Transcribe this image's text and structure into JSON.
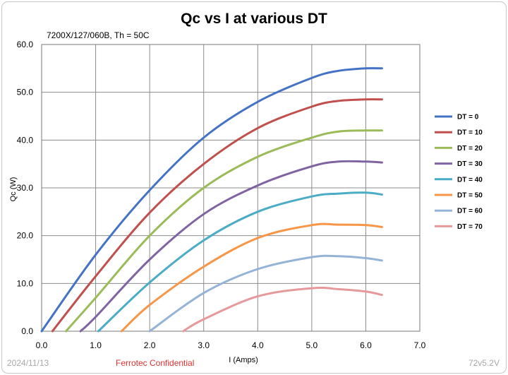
{
  "chart_data": {
    "type": "line",
    "title": "Qc vs I at various DT",
    "subtitle": "7200X/127/060B, Th = 50C",
    "xlabel": "I (Amps)",
    "ylabel": "Qc (W)",
    "xlim": [
      0,
      7
    ],
    "ylim": [
      0,
      60
    ],
    "xticks": [
      "0.0",
      "1.0",
      "2.0",
      "3.0",
      "4.0",
      "5.0",
      "6.0",
      "7.0"
    ],
    "yticks": [
      "0.0",
      "10.0",
      "20.0",
      "30.0",
      "40.0",
      "50.0",
      "60.0"
    ],
    "grid": true,
    "legend_position": "right",
    "series": [
      {
        "name": "DT = 0",
        "color": "#4472c4",
        "x": [
          0,
          1,
          2,
          3,
          4,
          5,
          5.5,
          6,
          6.3
        ],
        "y": [
          0,
          16,
          29.5,
          40.5,
          48,
          53,
          54.5,
          55,
          55
        ]
      },
      {
        "name": "DT = 10",
        "color": "#c0504d",
        "x": [
          0.2,
          1,
          2,
          3,
          4,
          5,
          5.5,
          6,
          6.3
        ],
        "y": [
          0,
          11.5,
          24.8,
          35,
          42.5,
          47,
          48.2,
          48.5,
          48.5
        ]
      },
      {
        "name": "DT = 20",
        "color": "#9bbb59",
        "x": [
          0.45,
          1,
          2,
          3,
          4,
          5,
          5.5,
          6,
          6.3
        ],
        "y": [
          0,
          7,
          20,
          30,
          36.5,
          40.5,
          41.8,
          42,
          42
        ]
      },
      {
        "name": "DT = 30",
        "color": "#8064a2",
        "x": [
          0.72,
          1,
          2,
          3,
          4,
          5,
          5.5,
          6,
          6.3
        ],
        "y": [
          0,
          3,
          15,
          24.5,
          30.5,
          34.5,
          35.5,
          35.5,
          35.3
        ]
      },
      {
        "name": "DT = 40",
        "color": "#4bacc6",
        "x": [
          1.05,
          2,
          3,
          4,
          5,
          5.5,
          6,
          6.3
        ],
        "y": [
          0,
          10.2,
          19,
          25,
          28.2,
          28.8,
          29,
          28.6
        ]
      },
      {
        "name": "DT = 50",
        "color": "#f79646",
        "x": [
          1.48,
          2,
          3,
          4,
          5,
          5.5,
          6,
          6.3
        ],
        "y": [
          0,
          5.5,
          13.5,
          19.5,
          22.2,
          22.3,
          22.2,
          21.8
        ]
      },
      {
        "name": "DT = 60",
        "color": "#95b3d7",
        "x": [
          2,
          3,
          4,
          5,
          5.5,
          6,
          6.3
        ],
        "y": [
          0,
          8,
          13,
          15.5,
          15.7,
          15.3,
          14.8
        ]
      },
      {
        "name": "DT = 70",
        "color": "#e6999b",
        "x": [
          2.62,
          3,
          4,
          5,
          5.5,
          6,
          6.3
        ],
        "y": [
          0,
          2.5,
          7.3,
          9,
          8.8,
          8.3,
          7.6
        ]
      }
    ]
  },
  "footer": {
    "date": "2024/11/13",
    "confidential": "Ferrotec Confidential",
    "version": "72v5.2V"
  }
}
